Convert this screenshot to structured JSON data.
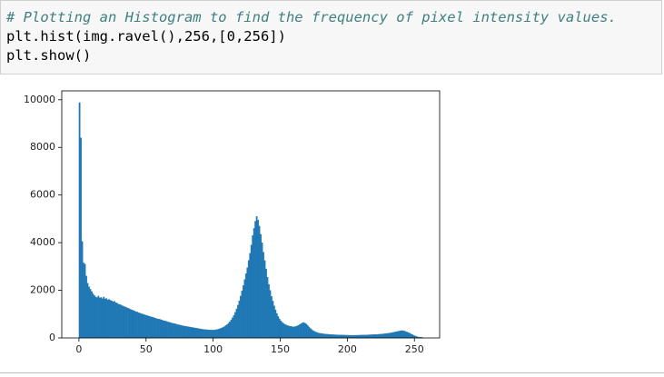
{
  "code_cell": {
    "lines": [
      "# Plotting an Histogram to find the frequency of pixel intensity values.",
      "plt.hist(img.ravel(),256,[0,256])",
      "plt.show()"
    ]
  },
  "chart_data": {
    "type": "histogram",
    "color": "#1f77b4",
    "bins": [
      0,
      1,
      2,
      3,
      4,
      5,
      6,
      7,
      8,
      9,
      10,
      11,
      12,
      13,
      14,
      15,
      16,
      17,
      18,
      19,
      20,
      21,
      22,
      23,
      24,
      25,
      26,
      27,
      28,
      29,
      30,
      31,
      32,
      33,
      34,
      35,
      36,
      37,
      38,
      39,
      40,
      41,
      42,
      43,
      44,
      45,
      46,
      47,
      48,
      49,
      50,
      51,
      52,
      53,
      54,
      55,
      56,
      57,
      58,
      59,
      60,
      61,
      62,
      63,
      64,
      65,
      66,
      67,
      68,
      69,
      70,
      71,
      72,
      73,
      74,
      75,
      76,
      77,
      78,
      79,
      80,
      81,
      82,
      83,
      84,
      85,
      86,
      87,
      88,
      89,
      90,
      91,
      92,
      93,
      94,
      95,
      96,
      97,
      98,
      99,
      100,
      101,
      102,
      103,
      104,
      105,
      106,
      107,
      108,
      109,
      110,
      111,
      112,
      113,
      114,
      115,
      116,
      117,
      118,
      119,
      120,
      121,
      122,
      123,
      124,
      125,
      126,
      127,
      128,
      129,
      130,
      131,
      132,
      133,
      134,
      135,
      136,
      137,
      138,
      139,
      140,
      141,
      142,
      143,
      144,
      145,
      146,
      147,
      148,
      149,
      150,
      151,
      152,
      153,
      154,
      155,
      156,
      157,
      158,
      159,
      160,
      161,
      162,
      163,
      164,
      165,
      166,
      167,
      168,
      169,
      170,
      171,
      172,
      173,
      174,
      175,
      176,
      177,
      178,
      179,
      180,
      181,
      182,
      183,
      184,
      185,
      186,
      187,
      188,
      189,
      190,
      191,
      192,
      193,
      194,
      195,
      196,
      197,
      198,
      199,
      200,
      201,
      202,
      203,
      204,
      205,
      206,
      207,
      208,
      209,
      210,
      211,
      212,
      213,
      214,
      215,
      216,
      217,
      218,
      219,
      220,
      221,
      222,
      223,
      224,
      225,
      226,
      227,
      228,
      229,
      230,
      231,
      232,
      233,
      234,
      235,
      236,
      237,
      238,
      239,
      240,
      241,
      242,
      243,
      244,
      245,
      246,
      247,
      248,
      249,
      250,
      251,
      252,
      253,
      254,
      255,
      256
    ],
    "counts": [
      9880,
      8400,
      4050,
      3150,
      3100,
      2600,
      2300,
      2150,
      2050,
      1950,
      1850,
      1780,
      1720,
      1700,
      1760,
      1680,
      1700,
      1650,
      1720,
      1640,
      1660,
      1600,
      1620,
      1580,
      1560,
      1520,
      1540,
      1480,
      1460,
      1420,
      1400,
      1380,
      1350,
      1320,
      1300,
      1280,
      1250,
      1230,
      1200,
      1180,
      1150,
      1130,
      1100,
      1090,
      1060,
      1040,
      1020,
      1000,
      980,
      960,
      950,
      930,
      910,
      890,
      880,
      860,
      840,
      820,
      800,
      790,
      780,
      760,
      740,
      720,
      710,
      690,
      670,
      660,
      640,
      620,
      610,
      600,
      580,
      560,
      550,
      540,
      520,
      510,
      500,
      490,
      480,
      470,
      460,
      450,
      440,
      430,
      420,
      410,
      400,
      390,
      380,
      370,
      360,
      355,
      350,
      345,
      340,
      335,
      330,
      330,
      330,
      340,
      350,
      360,
      380,
      400,
      420,
      450,
      480,
      520,
      560,
      620,
      680,
      760,
      850,
      950,
      1080,
      1220,
      1380,
      1560,
      1760,
      1980,
      2200,
      2450,
      2700,
      2950,
      3250,
      3550,
      3900,
      4300,
      4600,
      4900,
      5100,
      4950,
      4700,
      4350,
      4000,
      3600,
      3250,
      2900,
      2550,
      2250,
      2000,
      1750,
      1550,
      1350,
      1180,
      1030,
      900,
      800,
      720,
      660,
      610,
      570,
      540,
      520,
      500,
      490,
      480,
      470,
      470,
      480,
      500,
      530,
      560,
      600,
      630,
      650,
      620,
      580,
      520,
      460,
      400,
      350,
      310,
      280,
      250,
      230,
      210,
      200,
      190,
      180,
      170,
      165,
      160,
      155,
      150,
      145,
      140,
      138,
      135,
      132,
      130,
      128,
      126,
      124,
      122,
      120,
      118,
      116,
      115,
      114,
      113,
      112,
      112,
      113,
      114,
      115,
      116,
      118,
      120,
      122,
      124,
      126,
      128,
      130,
      132,
      135,
      138,
      140,
      143,
      146,
      150,
      154,
      158,
      163,
      168,
      174,
      180,
      188,
      196,
      205,
      215,
      226,
      238,
      250,
      262,
      274,
      286,
      300,
      310,
      305,
      290,
      270,
      250,
      225,
      200,
      170,
      140,
      110,
      85,
      60,
      45,
      35,
      30,
      25
    ],
    "xlim": [
      -12.8,
      268.8
    ],
    "ylim": [
      0,
      10374
    ],
    "xticks": [
      0,
      50,
      100,
      150,
      200,
      250
    ],
    "yticks": [
      0,
      2000,
      4000,
      6000,
      8000,
      10000
    ]
  }
}
